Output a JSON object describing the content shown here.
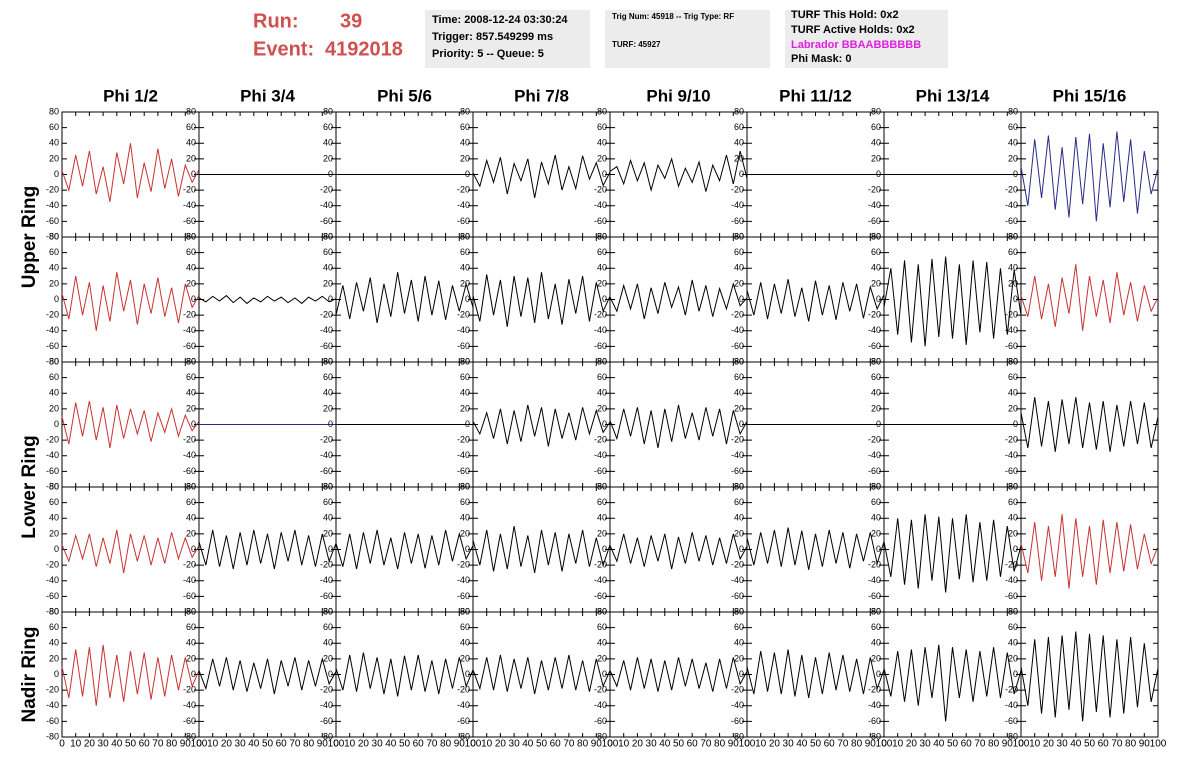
{
  "header": {
    "run_label": "Run:",
    "run": 39,
    "event_label": "Event:",
    "event": 4192018
  },
  "info": {
    "time": "Time: 2008-12-24 03:30:24",
    "trigger": "Trigger: 857.549299 ms",
    "priority": "Priority: 5 -- Queue: 5",
    "trig_num": "Trig Num: 45918 -- Trig Type: RF",
    "turf": "TURF: 45927",
    "turf_hold": "TURF This Hold: 0x2",
    "turf_active": "TURF Active Holds: 0x2",
    "labrador": "Labrador BBAABBBBBB",
    "phi_mask": "Phi Mask: 0"
  },
  "columns": [
    "Phi 1/2",
    "Phi 3/4",
    "Phi 5/6",
    "Phi 7/8",
    "Phi 9/10",
    "Phi 11/12",
    "Phi 13/14",
    "Phi 15/16"
  ],
  "ring_labels": [
    "Upper Ring",
    "Lower Ring",
    "Nadir Ring"
  ],
  "panels": {
    "x": [
      0,
      5,
      10,
      15,
      20,
      25,
      30,
      35,
      40,
      45,
      50,
      55,
      60,
      65,
      70,
      75,
      80,
      85,
      90,
      95,
      100
    ],
    "xlim": [
      0,
      100
    ],
    "ylim": [
      -80,
      80
    ],
    "xticks": [
      0,
      10,
      20,
      30,
      40,
      50,
      60,
      70,
      80,
      90,
      100
    ],
    "yticks": [
      80,
      60,
      40,
      20,
      0,
      -20,
      -40,
      -60,
      -80
    ],
    "rows": [
      [
        {
          "color": "#c83232",
          "values": [
            5,
            -20,
            25,
            -15,
            30,
            -25,
            10,
            -35,
            28,
            -12,
            40,
            -30,
            15,
            -22,
            33,
            -18,
            20,
            -28,
            12,
            -10,
            6
          ]
        },
        {
          "color": "#000000",
          "values": [
            0,
            0,
            0,
            0,
            0,
            0,
            0,
            0,
            0,
            0,
            0,
            0,
            0,
            0,
            0,
            0,
            0,
            0,
            0,
            0,
            0
          ]
        },
        {
          "color": "#000000",
          "values": [
            0,
            0,
            0,
            0,
            0,
            0,
            0,
            0,
            0,
            0,
            0,
            0,
            0,
            0,
            0,
            0,
            0,
            0,
            0,
            0,
            0
          ]
        },
        {
          "color": "#000000",
          "values": [
            2,
            -15,
            18,
            -10,
            22,
            -25,
            14,
            -8,
            20,
            -30,
            16,
            -12,
            25,
            -20,
            10,
            -18,
            24,
            -6,
            15,
            -14,
            3
          ]
        },
        {
          "color": "#000000",
          "values": [
            4,
            10,
            -12,
            18,
            -8,
            15,
            -20,
            12,
            -5,
            20,
            -15,
            8,
            -10,
            16,
            -22,
            12,
            -8,
            25,
            -12,
            30,
            -5
          ]
        },
        {
          "color": "#000000",
          "values": [
            0,
            0,
            0,
            0,
            0,
            0,
            0,
            0,
            0,
            0,
            0,
            0,
            0,
            0,
            0,
            0,
            0,
            0,
            0,
            0,
            0
          ]
        },
        {
          "color": "#000000",
          "values": [
            0,
            0,
            0,
            0,
            0,
            0,
            0,
            0,
            0,
            0,
            0,
            0,
            0,
            0,
            0,
            0,
            0,
            0,
            0,
            0,
            0
          ]
        },
        {
          "color": "#2a2a8c",
          "values": [
            10,
            -40,
            45,
            -30,
            50,
            -45,
            35,
            -55,
            48,
            -38,
            52,
            -60,
            40,
            -42,
            55,
            -35,
            45,
            -50,
            30,
            -25,
            8
          ]
        }
      ],
      [
        {
          "color": "#c83232",
          "values": [
            8,
            -25,
            30,
            -20,
            22,
            -40,
            18,
            -28,
            35,
            -15,
            25,
            -32,
            20,
            -18,
            28,
            -22,
            15,
            -30,
            20,
            -10,
            5
          ]
        },
        {
          "color": "#000000",
          "values": [
            2,
            -3,
            4,
            -2,
            5,
            -4,
            3,
            -5,
            2,
            -3,
            4,
            -2,
            3,
            -4,
            2,
            -5,
            3,
            -2,
            4,
            -3,
            1
          ]
        },
        {
          "color": "#000000",
          "values": [
            -20,
            18,
            -25,
            22,
            -15,
            28,
            -30,
            20,
            -22,
            35,
            -18,
            25,
            -28,
            30,
            -20,
            24,
            -26,
            18,
            -15,
            20,
            -10
          ]
        },
        {
          "color": "#000000",
          "values": [
            5,
            -28,
            32,
            -20,
            25,
            -35,
            30,
            -22,
            28,
            -30,
            35,
            -25,
            20,
            -32,
            26,
            -18,
            30,
            -28,
            22,
            -15,
            4
          ]
        },
        {
          "color": "#000000",
          "values": [
            3,
            -15,
            18,
            -12,
            20,
            -25,
            15,
            -18,
            22,
            -10,
            16,
            -20,
            25,
            -15,
            18,
            -22,
            14,
            -12,
            20,
            -8,
            2
          ]
        },
        {
          "color": "#000000",
          "values": [
            12,
            -20,
            22,
            -25,
            20,
            -18,
            26,
            -22,
            15,
            -28,
            24,
            -20,
            18,
            -26,
            22,
            -15,
            20,
            -24,
            16,
            -12,
            6
          ]
        },
        {
          "color": "#000000",
          "values": [
            -10,
            40,
            -45,
            50,
            -55,
            45,
            -60,
            52,
            -48,
            55,
            -50,
            45,
            -58,
            50,
            -42,
            48,
            -50,
            40,
            -45,
            38,
            -20
          ]
        },
        {
          "color": "#c83232",
          "values": [
            5,
            -22,
            30,
            -25,
            20,
            -35,
            28,
            -18,
            45,
            -40,
            30,
            -22,
            25,
            -30,
            35,
            -20,
            22,
            -28,
            18,
            -15,
            3
          ]
        }
      ],
      [
        {
          "color": "#c83232",
          "values": [
            10,
            -25,
            28,
            -15,
            30,
            -20,
            22,
            -30,
            25,
            -18,
            20,
            -12,
            18,
            -22,
            15,
            -10,
            20,
            -15,
            12,
            -8,
            4
          ]
        },
        {
          "color": "#2a2a8c",
          "values": [
            0,
            0,
            0,
            0,
            0,
            0,
            0,
            0,
            0,
            0,
            0,
            0,
            0,
            0,
            0,
            0,
            0,
            0,
            0,
            0,
            0
          ]
        },
        {
          "color": "#000000",
          "values": [
            0,
            0,
            0,
            0,
            0,
            0,
            0,
            0,
            0,
            0,
            0,
            0,
            0,
            0,
            0,
            0,
            0,
            0,
            0,
            0,
            0
          ]
        },
        {
          "color": "#000000",
          "values": [
            4,
            -12,
            15,
            -18,
            20,
            -25,
            18,
            -22,
            25,
            -15,
            22,
            -28,
            20,
            -18,
            15,
            -20,
            22,
            -12,
            18,
            -10,
            3
          ]
        },
        {
          "color": "#000000",
          "values": [
            5,
            -18,
            20,
            -15,
            22,
            -25,
            18,
            -30,
            20,
            -22,
            25,
            -18,
            15,
            -20,
            22,
            -15,
            20,
            -25,
            18,
            -12,
            4
          ]
        },
        {
          "color": "#000000",
          "values": [
            0,
            0,
            0,
            0,
            0,
            0,
            0,
            0,
            0,
            0,
            0,
            0,
            0,
            0,
            0,
            0,
            0,
            0,
            0,
            0,
            0
          ]
        },
        {
          "color": "#000000",
          "values": [
            0,
            0,
            0,
            0,
            0,
            0,
            0,
            0,
            0,
            0,
            0,
            0,
            0,
            0,
            0,
            0,
            0,
            0,
            0,
            0,
            0
          ]
        },
        {
          "color": "#000000",
          "values": [
            15,
            -30,
            35,
            -28,
            30,
            -35,
            32,
            -25,
            35,
            -30,
            28,
            -32,
            30,
            -35,
            25,
            -28,
            30,
            -25,
            28,
            -30,
            10
          ]
        }
      ],
      [
        {
          "color": "#c83232",
          "values": [
            6,
            -15,
            18,
            -12,
            20,
            -22,
            15,
            -18,
            25,
            -30,
            20,
            -15,
            18,
            -20,
            15,
            -18,
            22,
            -12,
            15,
            -10,
            5
          ]
        },
        {
          "color": "#000000",
          "values": [
            10,
            -20,
            25,
            -22,
            18,
            -25,
            22,
            -20,
            25,
            -18,
            20,
            -25,
            22,
            -15,
            25,
            -20,
            18,
            -22,
            20,
            -15,
            8
          ]
        },
        {
          "color": "#000000",
          "values": [
            8,
            -22,
            20,
            -25,
            22,
            -18,
            25,
            -20,
            15,
            -25,
            22,
            -18,
            20,
            -24,
            18,
            -20,
            25,
            -15,
            20,
            -12,
            5
          ]
        },
        {
          "color": "#000000",
          "values": [
            12,
            -20,
            25,
            -28,
            20,
            -25,
            30,
            -22,
            18,
            -30,
            25,
            -20,
            22,
            -28,
            20,
            -18,
            25,
            -22,
            15,
            -20,
            6
          ]
        },
        {
          "color": "#000000",
          "values": [
            5,
            -15,
            20,
            -18,
            15,
            -22,
            18,
            -15,
            20,
            -25,
            16,
            -18,
            22,
            -15,
            18,
            -20,
            15,
            -18,
            20,
            -12,
            4
          ]
        },
        {
          "color": "#000000",
          "values": [
            15,
            -20,
            22,
            -18,
            25,
            -22,
            28,
            -20,
            24,
            -26,
            20,
            -22,
            25,
            -18,
            22,
            -24,
            20,
            -15,
            22,
            -18,
            10
          ]
        },
        {
          "color": "#000000",
          "values": [
            10,
            -35,
            40,
            -45,
            38,
            -50,
            45,
            -40,
            42,
            -55,
            40,
            -38,
            45,
            -42,
            35,
            -40,
            38,
            -35,
            30,
            -28,
            5
          ]
        },
        {
          "color": "#c83232",
          "values": [
            8,
            -30,
            35,
            -40,
            30,
            -35,
            45,
            -50,
            40,
            -35,
            30,
            -45,
            38,
            -30,
            35,
            -28,
            32,
            -25,
            20,
            -18,
            4
          ]
        }
      ],
      [
        {
          "color": "#c83232",
          "values": [
            10,
            -30,
            32,
            -28,
            35,
            -40,
            38,
            -30,
            25,
            -35,
            30,
            -25,
            28,
            -32,
            22,
            -28,
            25,
            -20,
            22,
            -15,
            5
          ]
        },
        {
          "color": "#000000",
          "values": [
            5,
            -18,
            20,
            -15,
            22,
            -20,
            18,
            -22,
            15,
            -18,
            20,
            -25,
            18,
            -15,
            22,
            -20,
            18,
            -15,
            20,
            -12,
            4
          ]
        },
        {
          "color": "#000000",
          "values": [
            8,
            -20,
            25,
            -22,
            28,
            -18,
            22,
            -25,
            20,
            -28,
            24,
            -20,
            25,
            -22,
            18,
            -25,
            20,
            -18,
            22,
            -15,
            6
          ]
        },
        {
          "color": "#000000",
          "values": [
            6,
            -18,
            22,
            -20,
            25,
            -22,
            20,
            -18,
            22,
            -25,
            18,
            -20,
            22,
            -18,
            25,
            -20,
            18,
            -22,
            20,
            -15,
            5
          ]
        },
        {
          "color": "#000000",
          "values": [
            5,
            -15,
            18,
            -20,
            22,
            -18,
            20,
            -22,
            18,
            -20,
            22,
            -15,
            20,
            -18,
            15,
            -22,
            20,
            -18,
            22,
            -12,
            4
          ]
        },
        {
          "color": "#000000",
          "values": [
            10,
            -25,
            30,
            -22,
            28,
            -25,
            32,
            -28,
            25,
            -30,
            22,
            -25,
            28,
            -20,
            25,
            -22,
            20,
            -25,
            22,
            -18,
            6
          ]
        },
        {
          "color": "#000000",
          "values": [
            8,
            -28,
            30,
            -35,
            32,
            -40,
            35,
            -30,
            38,
            -60,
            35,
            -30,
            32,
            -35,
            30,
            -28,
            35,
            -30,
            28,
            -25,
            5
          ]
        },
        {
          "color": "#000000",
          "values": [
            10,
            -40,
            45,
            -50,
            48,
            -55,
            50,
            -45,
            55,
            -60,
            52,
            -48,
            50,
            -55,
            45,
            -50,
            48,
            -42,
            40,
            -35,
            8
          ]
        }
      ]
    ]
  }
}
